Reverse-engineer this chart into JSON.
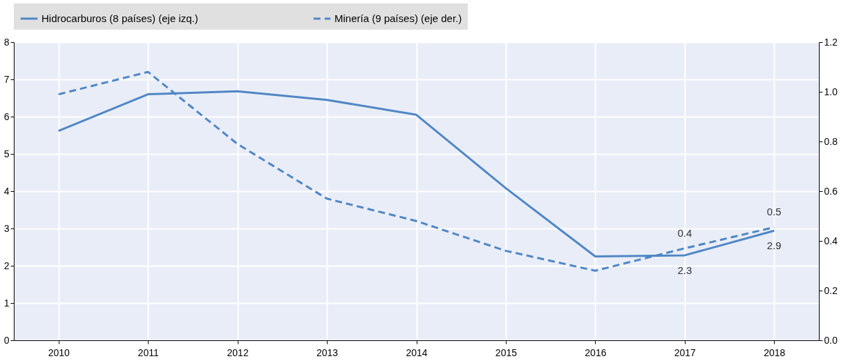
{
  "chart_data": {
    "type": "line",
    "categories": [
      "2010",
      "2011",
      "2012",
      "2013",
      "2014",
      "2015",
      "2016",
      "2017",
      "2018"
    ],
    "series": [
      {
        "name": "Hidrocarburos (8 países) (eje izq.)",
        "color": "#4f86c6",
        "line_style": "solid",
        "values": [
          5.62,
          6.6,
          6.68,
          6.45,
          6.05,
          4.08,
          2.25,
          2.28,
          2.94
        ],
        "value_labels": [
          null,
          null,
          null,
          null,
          null,
          null,
          null,
          "2.3",
          "2.9"
        ]
      },
      {
        "name": "Minería (9 países) (eje der.)",
        "color": "#4f86c6",
        "line_style": "dashed",
        "axis": "y2",
        "values": [
          0.99,
          1.08,
          0.79,
          0.57,
          0.48,
          0.36,
          0.28,
          0.37,
          0.455
        ],
        "value_labels": [
          null,
          null,
          null,
          null,
          null,
          null,
          null,
          "0.4",
          "0.5"
        ]
      }
    ],
    "ylim": [
      0,
      8
    ],
    "yticks": [
      0,
      1,
      2,
      3,
      4,
      5,
      6,
      7,
      8
    ],
    "y2lim": [
      0,
      1.2
    ],
    "y2ticks": [
      {
        "value": 0,
        "label": "0.0"
      },
      {
        "value": 0.2,
        "label": "0.2"
      },
      {
        "value": 0.4,
        "label": "0.4"
      },
      {
        "value": 0.6,
        "label": "0.6"
      },
      {
        "value": 0.8,
        "label": "0.8"
      },
      {
        "value": 1.0,
        "label": "1.0"
      },
      {
        "value": 1.2,
        "label": "1.2"
      }
    ],
    "grid": true,
    "legend": "top"
  }
}
